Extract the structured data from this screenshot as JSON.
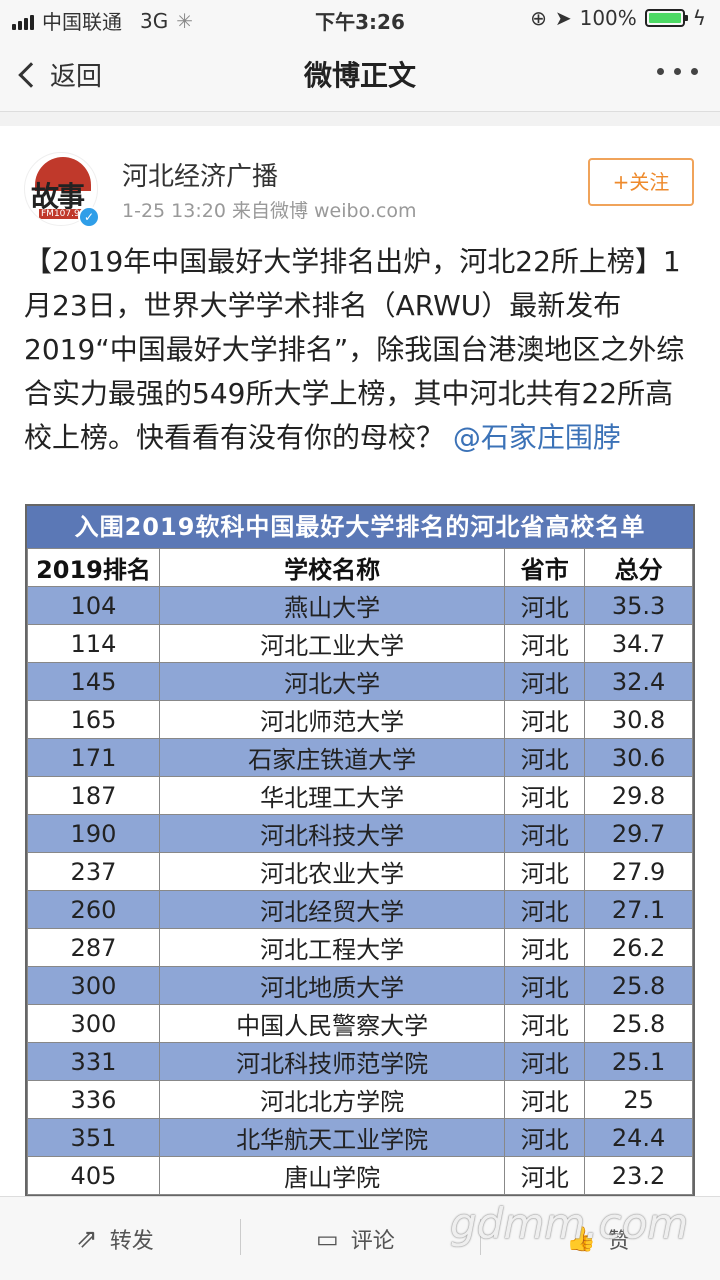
{
  "status_bar": {
    "carrier": "中国联通",
    "network": "3G",
    "time": "下午3:26",
    "battery": "100%"
  },
  "nav": {
    "back_label": "返回",
    "title": "微博正文"
  },
  "post": {
    "author_name": "河北经济广播",
    "meta": "1-25 13:20  来自微博 weibo.com",
    "follow_label": "+关注",
    "avatar_text": "故事",
    "avatar_fm": "FM107.9",
    "text": "【2019年中国最好大学排名出炉，河北22所上榜】1月23日，世界大学学术排名（ARWU）最新发布2019“中国最好大学排名”，除我国台港澳地区之外综合实力最强的549所大学上榜，其中河北共有22所高校上榜。快看看有没有你的母校？",
    "mention": "@石家庄围脖"
  },
  "table": {
    "title": "入围2019软科中国最好大学排名的河北省高校名单",
    "headers": [
      "2019排名",
      "学校名称",
      "省市",
      "总分"
    ],
    "rows": [
      {
        "rank": "104",
        "name": "燕山大学",
        "prov": "河北",
        "score": "35.3",
        "shade": true
      },
      {
        "rank": "114",
        "name": "河北工业大学",
        "prov": "河北",
        "score": "34.7",
        "shade": false
      },
      {
        "rank": "145",
        "name": "河北大学",
        "prov": "河北",
        "score": "32.4",
        "shade": true
      },
      {
        "rank": "165",
        "name": "河北师范大学",
        "prov": "河北",
        "score": "30.8",
        "shade": false
      },
      {
        "rank": "171",
        "name": "石家庄铁道大学",
        "prov": "河北",
        "score": "30.6",
        "shade": true
      },
      {
        "rank": "187",
        "name": "华北理工大学",
        "prov": "河北",
        "score": "29.8",
        "shade": false
      },
      {
        "rank": "190",
        "name": "河北科技大学",
        "prov": "河北",
        "score": "29.7",
        "shade": true
      },
      {
        "rank": "237",
        "name": "河北农业大学",
        "prov": "河北",
        "score": "27.9",
        "shade": false
      },
      {
        "rank": "260",
        "name": "河北经贸大学",
        "prov": "河北",
        "score": "27.1",
        "shade": true
      },
      {
        "rank": "287",
        "name": "河北工程大学",
        "prov": "河北",
        "score": "26.2",
        "shade": false
      },
      {
        "rank": "300",
        "name": "河北地质大学",
        "prov": "河北",
        "score": "25.8",
        "shade": true
      },
      {
        "rank": "300",
        "name": "中国人民警察大学",
        "prov": "河北",
        "score": "25.8",
        "shade": false
      },
      {
        "rank": "331",
        "name": "河北科技师范学院",
        "prov": "河北",
        "score": "25.1",
        "shade": true
      },
      {
        "rank": "336",
        "name": "河北北方学院",
        "prov": "河北",
        "score": "25",
        "shade": false
      },
      {
        "rank": "351",
        "name": "北华航天工业学院",
        "prov": "河北",
        "score": "24.4",
        "shade": true
      },
      {
        "rank": "405",
        "name": "唐山学院",
        "prov": "河北",
        "score": "23.2",
        "shade": false
      }
    ]
  },
  "actions": {
    "repost": "转发",
    "comment": "评论",
    "like": "赞"
  },
  "watermark": "gdmm.com",
  "colors": {
    "accent_orange": "#ee8a2c",
    "link_blue": "#3b72b7",
    "table_header_blue": "#5b78b6",
    "table_row_blue": "#8ea6d6"
  }
}
